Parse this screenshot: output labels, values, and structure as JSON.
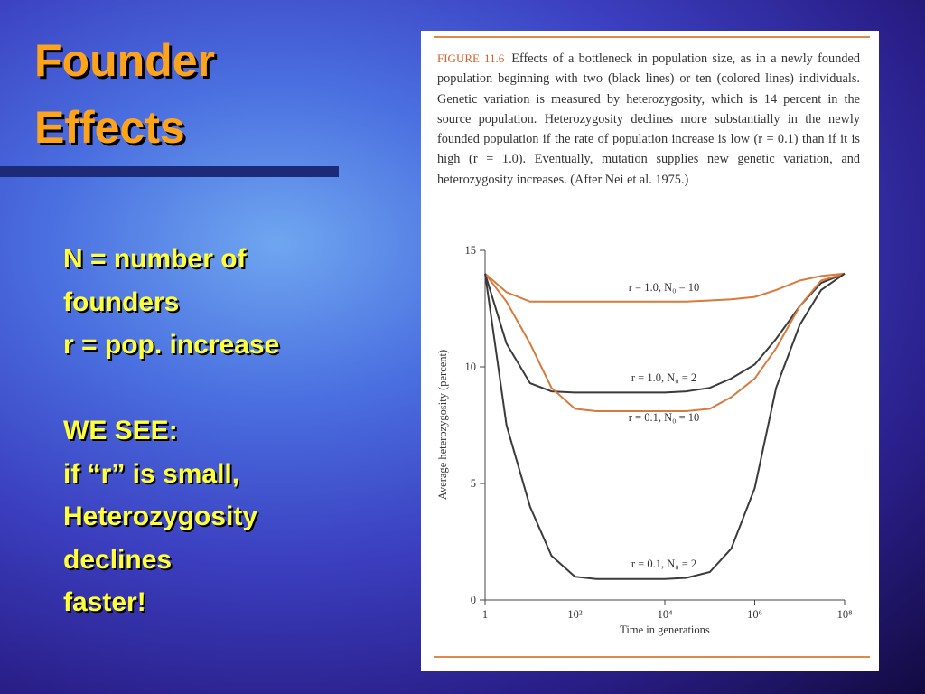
{
  "slide": {
    "title": [
      "Founder",
      "Effects"
    ],
    "body": [
      [
        "N = number of",
        "founders",
        "r = pop. increase"
      ],
      [
        "WE SEE:",
        "if “r” is small,",
        "Heterozygosity",
        "declines",
        "faster!"
      ]
    ]
  },
  "figure": {
    "label": "FIGURE 11.6",
    "caption": "Effects of a bottleneck in population size, as in a newly founded population beginning with two (black lines) or ten (colored lines) individuals. Genetic variation is measured by heterozygosity, which is 14 percent in the source population. Heterozygosity declines more substantially in the newly founded population if the rate of population increase is low (r = 0.1) than if it is high (r = 1.0). Eventually, mutation supplies new genetic variation, and heterozygosity increases. (After Nei et al. 1975.)"
  },
  "chart_data": {
    "type": "line",
    "xlabel": "Time in generations",
    "ylabel": "Average heterozygosity (percent)",
    "xscale": "log",
    "x": [
      1,
      3,
      10,
      30,
      100,
      300,
      1000,
      3000,
      10000,
      30000,
      100000,
      300000,
      1000000,
      3000000,
      10000000,
      30000000,
      100000000
    ],
    "xlim": [
      1,
      100000000
    ],
    "xticks": [
      1,
      {
        "value": 100,
        "label": "10²"
      },
      {
        "value": 10000,
        "label": "10⁴"
      },
      {
        "value": 1000000,
        "label": "10⁶"
      },
      {
        "value": 100000000,
        "label": "10⁸"
      }
    ],
    "ylim": [
      0,
      15
    ],
    "yticks": [
      0,
      5,
      10,
      15
    ],
    "series": [
      {
        "name": "r = 1.0, N₀ = 10",
        "color": "#d9793c",
        "values": [
          14,
          13.2,
          12.8,
          12.8,
          12.8,
          12.8,
          12.8,
          12.8,
          12.8,
          12.8,
          12.85,
          12.9,
          13.0,
          13.3,
          13.7,
          13.9,
          14
        ]
      },
      {
        "name": "r = 1.0, N₀ = 2",
        "color": "#3a3a3a",
        "values": [
          14,
          11.0,
          9.3,
          8.95,
          8.9,
          8.9,
          8.9,
          8.9,
          8.9,
          8.95,
          9.1,
          9.5,
          10.1,
          11.2,
          12.6,
          13.6,
          14
        ]
      },
      {
        "name": "r = 0.1, N₀ = 10",
        "color": "#d9793c",
        "values": [
          14,
          12.8,
          11,
          9.1,
          8.2,
          8.1,
          8.1,
          8.1,
          8.1,
          8.1,
          8.2,
          8.7,
          9.5,
          10.8,
          12.6,
          13.7,
          14
        ]
      },
      {
        "name": "r = 0.1, N₀ = 2",
        "color": "#3a3a3a",
        "values": [
          14,
          7.5,
          4.0,
          1.9,
          1.0,
          0.9,
          0.9,
          0.9,
          0.9,
          0.95,
          1.2,
          2.2,
          4.8,
          9.1,
          11.8,
          13.3,
          14
        ]
      }
    ]
  }
}
